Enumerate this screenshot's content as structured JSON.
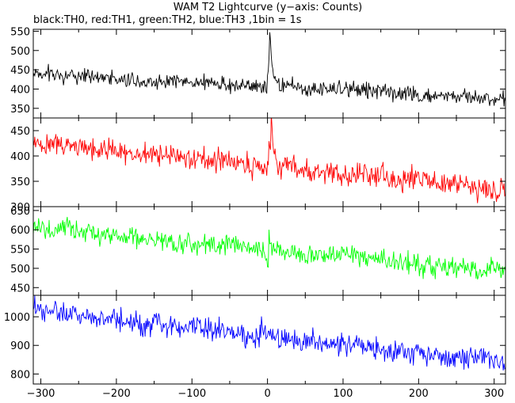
{
  "chart_data": {
    "type": "line",
    "title": "WAM T2 Lightcurve (y−axis: Counts)",
    "subtitle": "black:TH0, red:TH1, green:TH2, blue:TH3 ,1bin = 1s",
    "xlabel": "",
    "x_range": [
      -310,
      315
    ],
    "x_ticks": [
      -300,
      -200,
      -100,
      0,
      100,
      200,
      300
    ],
    "x_tick_labels": [
      "−300",
      "−200",
      "−100",
      "0",
      "100",
      "200",
      "300"
    ],
    "bin_seconds": 1,
    "grid": false,
    "legend": "none",
    "panels": [
      {
        "series_name": "TH0",
        "color": "#000000",
        "ylim": [
          325,
          555
        ],
        "y_ticks": [
          350,
          400,
          450,
          500,
          550
        ],
        "model": {
          "start": 440,
          "end": 375,
          "noise_amplitude": 20,
          "peak_time": 3,
          "peak_height": 150,
          "peak_width": 3.5,
          "dip_time": 250,
          "dip_depth": 12
        }
      },
      {
        "series_name": "TH1",
        "color": "#ff0000",
        "ylim": [
          300,
          475
        ],
        "y_ticks": [
          300,
          350,
          400,
          450
        ],
        "model": {
          "start": 425,
          "end": 335,
          "noise_amplitude": 22,
          "peak_time": 5,
          "peak_height": 95,
          "peak_width": 3.5,
          "dip_time": 250,
          "dip_depth": 5
        }
      },
      {
        "series_name": "TH2",
        "color": "#00ff00",
        "ylim": [
          430,
          660
        ],
        "y_ticks": [
          450,
          500,
          550,
          600,
          650
        ],
        "model": {
          "start": 605,
          "end": 490,
          "noise_amplitude": 26,
          "peak_time": 2,
          "peak_height": 70,
          "peak_width": 2.5,
          "dip_time": 0,
          "dip_depth": 55
        }
      },
      {
        "series_name": "TH3",
        "color": "#0000ff",
        "ylim": [
          765,
          1075
        ],
        "y_ticks": [
          800,
          900,
          1000
        ],
        "model": {
          "start": 1020,
          "end": 840,
          "noise_amplitude": 38,
          "peak_time": 0,
          "peak_height": 0,
          "peak_width": 1,
          "dip_time": -150,
          "dip_depth": 0
        }
      }
    ]
  }
}
